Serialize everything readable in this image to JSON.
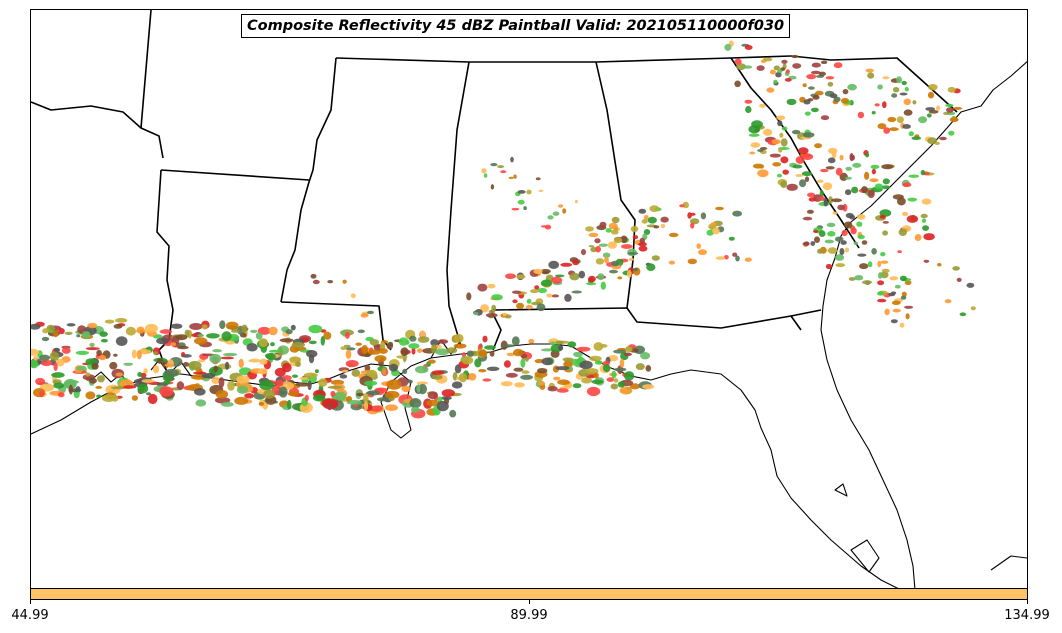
{
  "title": "Composite Reflectivity 45 dBZ Paintball Valid: 202105110000f030",
  "colorbar": {
    "color": "#ffc266",
    "ticks": [
      "44.99",
      "89.99",
      "134.99"
    ]
  },
  "palette": [
    "#ff4444",
    "#ff9933",
    "#ffbb55",
    "#44cc44",
    "#2a9a2a",
    "#999933",
    "#7a4a2a",
    "#a04040",
    "#555555",
    "#bbaa33",
    "#dd2222",
    "#cc7700",
    "#557755",
    "#66bb66"
  ],
  "colors": {
    "border": "#000000",
    "background": "#ffffff"
  }
}
